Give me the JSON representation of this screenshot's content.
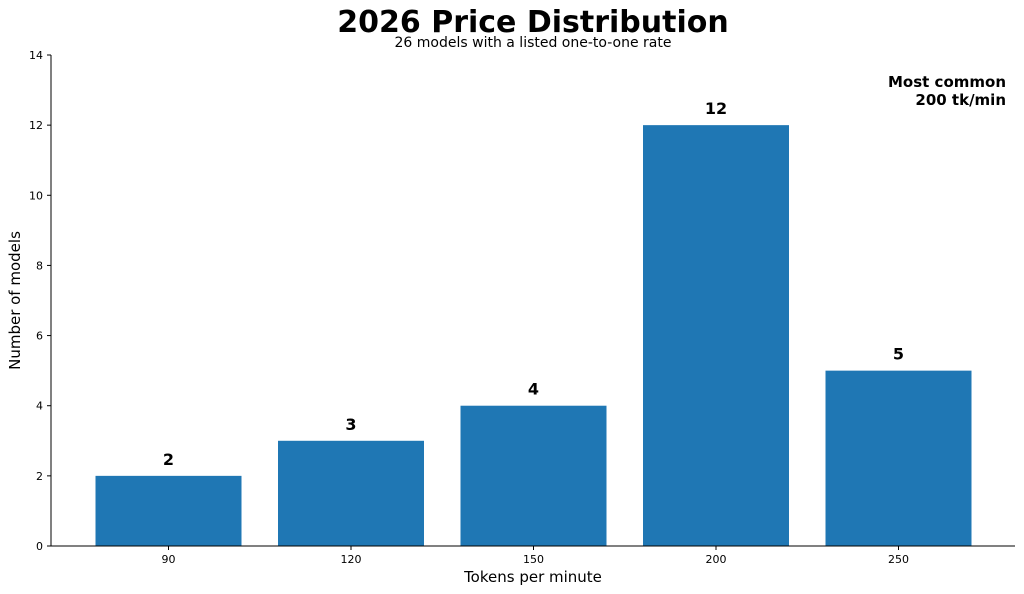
{
  "chart_data": {
    "type": "bar",
    "title": "2026 Price Distribution",
    "subtitle": "26 models with a listed one-to-one rate",
    "xlabel": "Tokens per minute",
    "ylabel": "Number of models",
    "categories": [
      "90",
      "120",
      "150",
      "200",
      "250"
    ],
    "values": [
      2,
      3,
      4,
      12,
      5
    ],
    "data_labels": [
      "2",
      "3",
      "4",
      "12",
      "5"
    ],
    "ylim": [
      0,
      14
    ],
    "yticks": [
      0,
      2,
      4,
      6,
      8,
      10,
      12,
      14
    ],
    "ytick_labels": [
      "0",
      "2",
      "4",
      "6",
      "8",
      "10",
      "12",
      "14"
    ],
    "grid": false,
    "legend": "none",
    "bar_color": "#1f77b4",
    "annotation": {
      "line1": "Most common",
      "line2": "200 tk/min",
      "placement": "top-right"
    }
  }
}
